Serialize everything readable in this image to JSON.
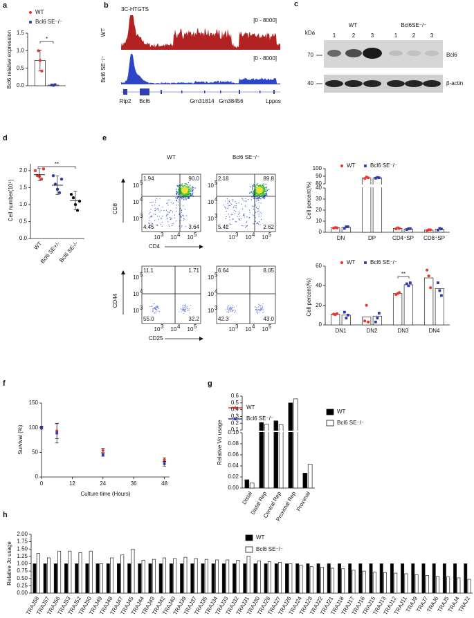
{
  "figure": {
    "panel_labels": [
      "a",
      "b",
      "c",
      "d",
      "e",
      "f",
      "g",
      "h"
    ],
    "b": {
      "title": "3C-HTGTS",
      "tracks": [
        {
          "name": "WT",
          "range": "[0 - 8000]"
        },
        {
          "name": "Bcl6 SE⁻/⁻",
          "range": "[0 - 8000]"
        }
      ],
      "genes": [
        "Rtp2",
        "Bcl6",
        "Gm31814",
        "Gm38456",
        "Lppos"
      ]
    },
    "c": {
      "unit": "kDa",
      "groups": [
        "WT",
        "Bcl6SE⁻/⁻"
      ],
      "lanes": [
        "1",
        "2",
        "3",
        "1",
        "2",
        "3"
      ],
      "markers": [
        "70",
        "40"
      ],
      "proteins": [
        "Bcl6",
        "β-actin"
      ]
    },
    "e": {
      "columns": [
        "WT",
        "Bcl6 SE⁻/⁻"
      ],
      "plots": [
        {
          "x": "CD4",
          "y": "CD8",
          "quadrants": [
            [
              "1.94",
              "90.0",
              "4.45",
              "3.64"
            ],
            [
              "2.18",
              "89.8",
              "5.42",
              "2.62"
            ]
          ]
        },
        {
          "x": "CD25",
          "y": "CD44",
          "quadrants": [
            [
              "11.1",
              "1.71",
              "55.0",
              "32.2"
            ],
            [
              "6.64",
              "8.05",
              "42.3",
              "43.0"
            ]
          ]
        }
      ],
      "tick_base": "10",
      "tick_exponents": [
        "3",
        "4",
        "5"
      ]
    }
  },
  "chart_data": [
    {
      "type": "bar",
      "bar_style": "hollow",
      "ylabel": "Bcl6 relative expression",
      "categories": [
        null
      ],
      "series": [
        {
          "name": "WT",
          "color": "#e8382f",
          "values": [
            0.72
          ],
          "errors": [
            0.3
          ],
          "points": [
            [
              1.0,
              0.72,
              0.42
            ]
          ]
        },
        {
          "name": "Bcl6 SE⁻/⁻",
          "color": "#2f3aa8",
          "values": [
            0.02
          ],
          "errors": [
            0.01
          ],
          "points": [
            [
              0.02,
              0.01,
              0.03
            ]
          ]
        }
      ],
      "ylim": [
        0,
        1.5
      ],
      "yticks": [
        {
          "value": 0,
          "label": "0.0"
        },
        {
          "value": 0.5,
          "label": "0.5"
        },
        {
          "value": 1,
          "label": "1.0"
        },
        {
          "value": 1.5,
          "label": "1.5"
        }
      ],
      "annotation": "*"
    },
    {
      "type": "dotplot",
      "ylabel": "Cell number(10⁶)",
      "categories": [
        "WT",
        "Bcl6 SE+/-",
        "Bcl6 SE-/-"
      ],
      "colors": [
        "#e8382f",
        "#2f3aa8",
        "#111111"
      ],
      "values": [
        1.88,
        1.57,
        1.12
      ],
      "errors": [
        0.18,
        0.28,
        0.27
      ],
      "points": [
        [
          2.0,
          1.85,
          1.83,
          1.75,
          2.05
        ],
        [
          1.85,
          1.6,
          1.45,
          1.35,
          1.75
        ],
        [
          1.3,
          1.2,
          1.0,
          0.83,
          1.1
        ]
      ],
      "ylim": [
        0,
        2.2
      ],
      "yticks": [
        {
          "value": 0,
          "label": "0.0"
        },
        {
          "value": 0.5,
          "label": "0.5"
        },
        {
          "value": 1,
          "label": "1.0"
        },
        {
          "value": 1.5,
          "label": "1.5"
        },
        {
          "value": 2,
          "label": "2.0"
        }
      ],
      "annotation": "**"
    },
    {
      "type": "bar",
      "bar_style": "hollow",
      "ylabel": "Cell percent(%)",
      "categories": [
        "DN",
        "DP",
        "CD4⁺SP",
        "CD8⁺SP"
      ],
      "series": [
        {
          "name": "WT",
          "color": "#e8382f",
          "values": [
            4,
            88,
            3.5,
            2
          ],
          "points": [
            [
              3.8,
              4.2,
              4
            ],
            [
              87,
              89,
              88
            ],
            [
              3,
              4,
              3.5
            ],
            [
              1.5,
              2.3,
              2.2
            ]
          ]
        },
        {
          "name": "Bcl6 SE⁻/⁻",
          "color": "#2f3aa8",
          "values": [
            4.5,
            88,
            3,
            2.8
          ],
          "points": [
            [
              3.5,
              5,
              5
            ],
            [
              87.5,
              88.5,
              88
            ],
            [
              2.5,
              3.2,
              3.3
            ],
            [
              2,
              3.5,
              3
            ]
          ]
        }
      ],
      "ylims": [
        [
          0,
          40
        ],
        [
          80,
          100
        ]
      ],
      "yticks": [
        [
          0,
          10,
          20,
          30,
          40
        ],
        [
          80,
          90,
          100
        ]
      ]
    },
    {
      "type": "bar",
      "bar_style": "hollow",
      "ylabel": "Cell percent(%)",
      "categories": [
        "DN1",
        "DN2",
        "DN3",
        "DN4"
      ],
      "series": [
        {
          "name": "WT",
          "color": "#e8382f",
          "values": [
            11,
            8,
            32,
            48
          ],
          "points": [
            [
              11,
              10.5,
              11.5
            ],
            [
              4,
              20,
              3
            ],
            [
              31,
              32,
              33
            ],
            [
              56,
              50,
              38
            ]
          ]
        },
        {
          "name": "Bcl6 SE⁻/⁻",
          "color": "#2f3aa8",
          "values": [
            10,
            9,
            41,
            37
          ],
          "points": [
            [
              13,
              7,
              10
            ],
            [
              3,
              7,
              12
            ],
            [
              42,
              40,
              43
            ],
            [
              43,
              35,
              30
            ]
          ]
        }
      ],
      "ylim": [
        0,
        60
      ],
      "yticks": [
        0,
        20,
        40,
        60
      ],
      "annotation": "**"
    },
    {
      "type": "line",
      "xlabel": "Culture time (Hours)",
      "ylabel": "Survival (%)",
      "x": [
        0,
        6,
        24,
        48
      ],
      "xlim": [
        0,
        50
      ],
      "xticks": [
        0,
        12,
        24,
        36,
        48
      ],
      "series": [
        {
          "name": "WT",
          "color": "#e8382f",
          "values": [
            100,
            93,
            54,
            35
          ],
          "errors": [
            3,
            15,
            4,
            4
          ]
        },
        {
          "name": "Bcl6 SE⁻/⁻",
          "color": "#2f3aa8",
          "values": [
            100,
            89,
            45,
            27
          ],
          "errors": [
            3,
            20,
            3,
            5
          ]
        }
      ],
      "ylim": [
        0,
        150
      ],
      "yticks": [
        0,
        50,
        100,
        150
      ]
    },
    {
      "type": "bar",
      "ylabel": "Relative Vα usage",
      "categories": [
        "Distal",
        "Distal Rep",
        "Central Rep",
        "Proximal Rep",
        "Proximal"
      ],
      "series": [
        {
          "name": "WT",
          "color": "#000000",
          "values": [
            0.015,
            0.21,
            0.235,
            0.5,
            0.027
          ]
        },
        {
          "name": "Bcl6 SE⁻/⁻",
          "color": "#ffffff",
          "values": [
            0.009,
            0.185,
            0.18,
            0.56,
            0.043
          ]
        }
      ],
      "ylims": [
        [
          0,
          0.1
        ],
        [
          0.1,
          0.6
        ]
      ],
      "yticks": [
        [
          {
            "value": 0,
            "label": "0.00"
          },
          {
            "value": 0.02,
            "label": "0.02"
          },
          {
            "value": 0.04,
            "label": "0.04"
          },
          {
            "value": 0.06,
            "label": "0.06"
          },
          {
            "value": 0.08,
            "label": "0.08"
          },
          {
            "value": 0.1,
            "label": "0.10"
          }
        ],
        [
          0.1,
          0.2,
          0.3,
          0.4,
          0.5,
          0.6
        ]
      ]
    },
    {
      "type": "bar",
      "ylabel": "Relative Jα usage",
      "categories": [
        "TRAJ58",
        "TRAJ57",
        "TRAJ56",
        "TRAJ53",
        "TRAJ52",
        "TRAJ50",
        "TRAJ49",
        "TRAJ48",
        "TRAJ47",
        "TRAJ45",
        "TRAJ44",
        "TRAJ43",
        "TRAJ42",
        "TRAJ40",
        "TRAJ39",
        "TRAJ37",
        "TRAJ35",
        "TRAJ34",
        "TRAJ33",
        "TRAJ32",
        "TRAJ31",
        "TRAJ30",
        "TRAJ28",
        "TRAJ27",
        "TRAJ26",
        "TRAJ24",
        "TRAJ23",
        "TRAJ22",
        "TRAJ21",
        "TRAJ18",
        "TRAJ17",
        "TRAJ16",
        "TRAJ15",
        "TRAJ13",
        "TRAJ12",
        "TRAJ11",
        "TRAJ9",
        "TRAJ7",
        "TRAJ6",
        "TRAJ5",
        "TRAJ4",
        "TRAJ2"
      ],
      "series": [
        {
          "name": "WT",
          "color": "#000000",
          "values": [
            1,
            1,
            1,
            1,
            1,
            1,
            1,
            1,
            1,
            1,
            1,
            1,
            1,
            1,
            1,
            1,
            1,
            1,
            1,
            1,
            1,
            1,
            1,
            1,
            1,
            1,
            1,
            1,
            1,
            1,
            1,
            1,
            1,
            1,
            1,
            1,
            1,
            1,
            1,
            1,
            1,
            1
          ]
        },
        {
          "name": "Bcl6 SE⁻/⁻",
          "color": "#ffffff",
          "values": [
            1.35,
            1.2,
            1.43,
            1.43,
            1.38,
            1.43,
            1.0,
            1.2,
            1.3,
            1.5,
            1.12,
            1.15,
            1.2,
            1.18,
            1.22,
            1.18,
            1.15,
            1.13,
            1.13,
            1.12,
            1.26,
            1.1,
            1.07,
            1.05,
            1.0,
            0.95,
            0.9,
            0.88,
            0.85,
            0.83,
            0.78,
            0.75,
            0.72,
            0.7,
            0.68,
            0.66,
            0.63,
            0.6,
            0.57,
            0.55,
            0.52,
            0.47
          ]
        }
      ],
      "ylim": [
        0,
        2
      ],
      "yticks": [
        {
          "value": 0,
          "label": "0.00"
        },
        {
          "value": 0.25,
          "label": "0.25"
        },
        {
          "value": 0.5,
          "label": "0.50"
        },
        {
          "value": 0.75,
          "label": "0.75"
        },
        {
          "value": 1,
          "label": "1.00"
        },
        {
          "value": 1.25,
          "label": "1.25"
        },
        {
          "value": 1.5,
          "label": "1.50"
        },
        {
          "value": 1.75,
          "label": "1.75"
        },
        {
          "value": 2,
          "label": "2.00"
        }
      ]
    }
  ]
}
